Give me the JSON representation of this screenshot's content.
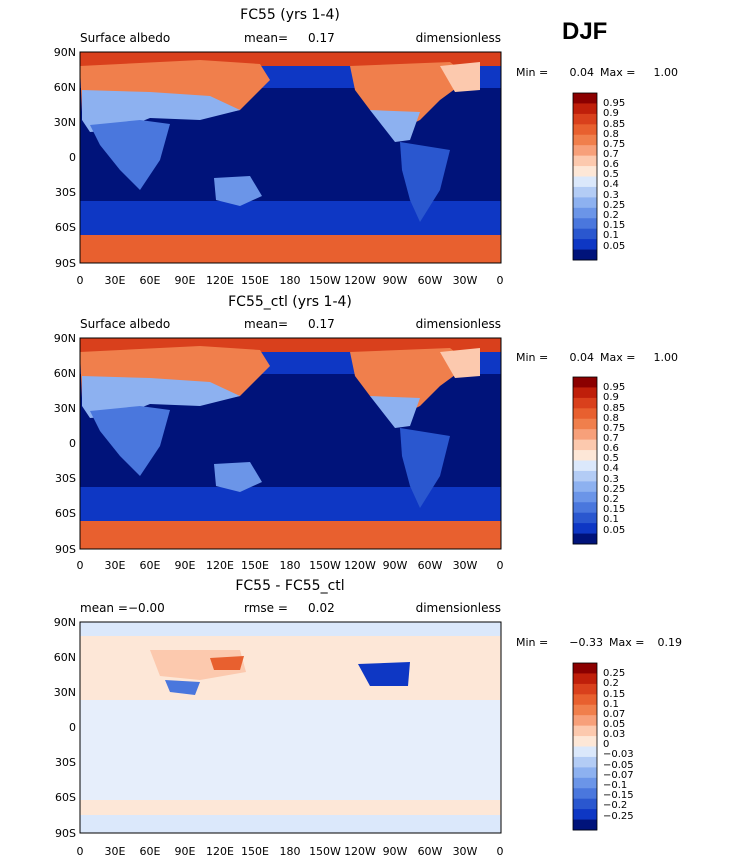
{
  "season": "DJF",
  "chart_data": [
    {
      "type": "heatmap",
      "title": "FC55 (yrs 1-4)",
      "subtitle_left": "Surface albedo",
      "subtitle_center_label": "mean=",
      "subtitle_center_value": "0.17",
      "subtitle_right": "dimensionless",
      "min_label": "Min =",
      "min_value": "0.04",
      "max_label": "Max =",
      "max_value": "1.00",
      "x_ticks": [
        "0",
        "30E",
        "60E",
        "90E",
        "120E",
        "150E",
        "180",
        "150W",
        "120W",
        "90W",
        "60W",
        "30W",
        "0"
      ],
      "y_ticks": [
        "90N",
        "60N",
        "30N",
        "0",
        "30S",
        "60S",
        "90S"
      ],
      "ylim": [
        -90,
        90
      ],
      "xlim": [
        0,
        360
      ],
      "colorbar_levels": [
        "0.95",
        "0.9",
        "0.85",
        "0.8",
        "0.75",
        "0.7",
        "0.6",
        "0.5",
        "0.4",
        "0.3",
        "0.25",
        "0.2",
        "0.15",
        "0.1",
        "0.05"
      ],
      "colorbar_colors": [
        "#8b0000",
        "#bf1f0a",
        "#d9401c",
        "#e8602f",
        "#f07f4c",
        "#f7a07a",
        "#fcc9ae",
        "#fde7d7",
        "#dbe8fb",
        "#b3ccf5",
        "#8db1f0",
        "#6b95e8",
        "#4a77dd",
        "#2a57cf",
        "#0e37c4",
        "#00137a"
      ],
      "variant": "control"
    },
    {
      "type": "heatmap",
      "title": "FC55_ctl (yrs 1-4)",
      "subtitle_left": "Surface albedo",
      "subtitle_center_label": "mean=",
      "subtitle_center_value": "0.17",
      "subtitle_right": "dimensionless",
      "min_label": "Min =",
      "min_value": "0.04",
      "max_label": "Max =",
      "max_value": "1.00",
      "x_ticks": [
        "0",
        "30E",
        "60E",
        "90E",
        "120E",
        "150E",
        "180",
        "150W",
        "120W",
        "90W",
        "60W",
        "30W",
        "0"
      ],
      "y_ticks": [
        "90N",
        "60N",
        "30N",
        "0",
        "30S",
        "60S",
        "90S"
      ],
      "ylim": [
        -90,
        90
      ],
      "xlim": [
        0,
        360
      ],
      "colorbar_levels": [
        "0.95",
        "0.9",
        "0.85",
        "0.8",
        "0.75",
        "0.7",
        "0.6",
        "0.5",
        "0.4",
        "0.3",
        "0.25",
        "0.2",
        "0.15",
        "0.1",
        "0.05"
      ],
      "colorbar_colors": [
        "#8b0000",
        "#bf1f0a",
        "#d9401c",
        "#e8602f",
        "#f07f4c",
        "#f7a07a",
        "#fcc9ae",
        "#fde7d7",
        "#dbe8fb",
        "#b3ccf5",
        "#8db1f0",
        "#6b95e8",
        "#4a77dd",
        "#2a57cf",
        "#0e37c4",
        "#00137a"
      ],
      "variant": "control"
    },
    {
      "type": "heatmap",
      "title": "FC55 - FC55_ctl",
      "subtitle_left_label": "mean =",
      "subtitle_left_value": "−0.00",
      "subtitle_center_label": "rmse =",
      "subtitle_center_value": "0.02",
      "subtitle_right": "dimensionless",
      "min_label": "Min =",
      "min_value": "−0.33",
      "max_label": "Max =",
      "max_value": "0.19",
      "x_ticks": [
        "0",
        "30E",
        "60E",
        "90E",
        "120E",
        "150E",
        "180",
        "150W",
        "120W",
        "90W",
        "60W",
        "30W",
        "0"
      ],
      "y_ticks": [
        "90N",
        "60N",
        "30N",
        "0",
        "30S",
        "60S",
        "90S"
      ],
      "ylim": [
        -90,
        90
      ],
      "xlim": [
        0,
        360
      ],
      "colorbar_levels": [
        "0.25",
        "0.2",
        "0.15",
        "0.1",
        "0.07",
        "0.05",
        "0.03",
        "0",
        "−0.03",
        "−0.05",
        "−0.07",
        "−0.1",
        "−0.15",
        "−0.2",
        "−0.25"
      ],
      "colorbar_colors": [
        "#8b0000",
        "#bf1f0a",
        "#d9401c",
        "#e8602f",
        "#f07f4c",
        "#f7a07a",
        "#fcc9ae",
        "#fde7d7",
        "#dbe8fb",
        "#b3ccf5",
        "#8db1f0",
        "#6b95e8",
        "#4a77dd",
        "#2a57cf",
        "#0e37c4",
        "#00137a"
      ],
      "variant": "difference"
    }
  ]
}
